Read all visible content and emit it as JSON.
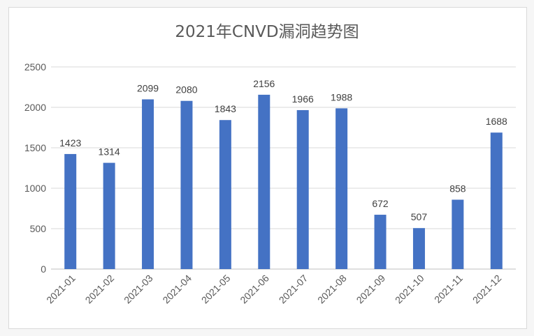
{
  "chart_data": {
    "type": "bar",
    "title": "2021年CNVD漏洞趋势图",
    "categories": [
      "2021-01",
      "2021-02",
      "2021-03",
      "2021-04",
      "2021-05",
      "2021-06",
      "2021-07",
      "2021-08",
      "2021-09",
      "2021-10",
      "2021-11",
      "2021-12"
    ],
    "values": [
      1423,
      1314,
      2099,
      2080,
      1843,
      2156,
      1966,
      1988,
      672,
      507,
      858,
      1688
    ],
    "ylim": [
      0,
      2500
    ],
    "yticks": [
      0,
      500,
      1000,
      1500,
      2000,
      2500
    ],
    "grid": true,
    "bar_color": "#4472c4",
    "data_labels": true
  }
}
